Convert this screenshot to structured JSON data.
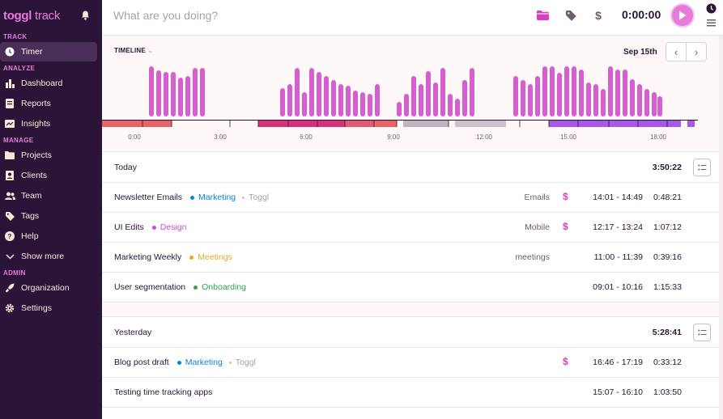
{
  "sidebar": {
    "logo_bold": "toggl",
    "logo_light": " track",
    "sections": [
      {
        "label": "TRACK",
        "items": [
          {
            "label": "Timer",
            "icon": "clock-icon",
            "active": true
          }
        ]
      },
      {
        "label": "ANALYZE",
        "items": [
          {
            "label": "Dashboard",
            "icon": "bar-chart-icon"
          },
          {
            "label": "Reports",
            "icon": "document-icon"
          },
          {
            "label": "Insights",
            "icon": "insights-icon"
          }
        ]
      },
      {
        "label": "MANAGE",
        "items": [
          {
            "label": "Projects",
            "icon": "folder-icon"
          },
          {
            "label": "Clients",
            "icon": "client-icon"
          },
          {
            "label": "Team",
            "icon": "team-icon"
          },
          {
            "label": "Tags",
            "icon": "tag-icon"
          },
          {
            "label": "Help",
            "icon": "help-icon"
          },
          {
            "label": "Show more",
            "icon": "chevron-down-icon"
          }
        ]
      },
      {
        "label": "ADMIN",
        "items": [
          {
            "label": "Organization",
            "icon": "rocket-icon"
          },
          {
            "label": "Settings",
            "icon": "gear-icon"
          }
        ]
      }
    ]
  },
  "topbar": {
    "placeholder": "What are you doing?",
    "timer": "0:00:00"
  },
  "timeline": {
    "label": "TIMELINE",
    "date": "Sep 15th",
    "hour_labels": [
      "0:00",
      "3:00",
      "6:00",
      "9:00",
      "12:00",
      "15:00",
      "18:00"
    ]
  },
  "groups": [
    {
      "title": "Today",
      "total": "3:50:22",
      "entries": [
        {
          "description": "Newsletter Emails",
          "project": "Marketing",
          "project_color": "#0b83d9",
          "client": "Toggl",
          "tag": "Emails",
          "billable": true,
          "range": "14:01 - 14:49",
          "duration": "0:48:21"
        },
        {
          "description": "UI Edits",
          "project": "Design",
          "project_color": "#c94fd2",
          "client": "",
          "tag": "Mobile",
          "billable": true,
          "range": "12:17 - 13:24",
          "duration": "1:07:12"
        },
        {
          "description": "Marketing Weekly",
          "project": "Meetings",
          "project_color": "#e5a928",
          "client": "",
          "tag": "meetings",
          "billable": false,
          "range": "11:00 - 11:39",
          "duration": "0:39:16"
        },
        {
          "description": "User segmentation",
          "project": "Onboarding",
          "project_color": "#2da44e",
          "client": "",
          "tag": "",
          "billable": false,
          "range": "09:01 - 10:16",
          "duration": "1:15:33"
        }
      ]
    },
    {
      "title": "Yesterday",
      "total": "5:28:41",
      "entries": [
        {
          "description": "Blog post draft",
          "project": "Marketing",
          "project_color": "#0b83d9",
          "client": "Toggl",
          "tag": "",
          "billable": true,
          "range": "16:46 - 17:19",
          "duration": "0:33:12"
        },
        {
          "description": "Testing time tracking apps",
          "project": "",
          "project_color": "",
          "client": "",
          "tag": "",
          "billable": false,
          "range": "15:07  - 16:10",
          "duration": "1:03:50"
        }
      ]
    }
  ],
  "colors": {
    "sidebar_bg": "#2c1338",
    "accent": "#e57cd8",
    "bar": "#d65fd0"
  }
}
